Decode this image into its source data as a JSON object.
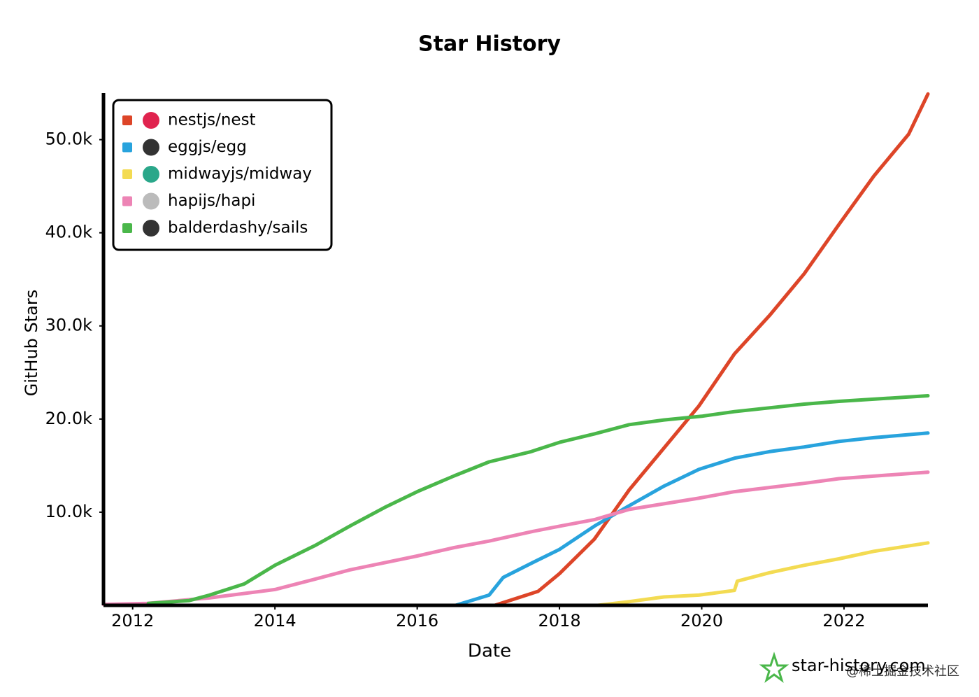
{
  "chart_data": {
    "type": "line",
    "title": "Star History",
    "x_label": "Date",
    "y_label": "GitHub Stars",
    "xlim": [
      2011.59,
      2023.18
    ],
    "xticks": [
      2012,
      2014,
      2016,
      2018,
      2020,
      2022
    ],
    "ylim": [
      0,
      55000
    ],
    "yticks": [
      {
        "value": 10000,
        "label": "10.0k"
      },
      {
        "value": 20000,
        "label": "20.0k"
      },
      {
        "value": 30000,
        "label": "30.0k"
      },
      {
        "value": 40000,
        "label": "40.0k"
      },
      {
        "value": 50000,
        "label": "50.0k"
      }
    ],
    "legend": "upper left",
    "grid": false,
    "series": [
      {
        "name": "nestjs/nest",
        "color": "#dd4528",
        "x": [
          2017.09,
          2017.7,
          2018.0,
          2018.49,
          2018.98,
          2019.47,
          2019.96,
          2020.46,
          2020.95,
          2021.44,
          2021.93,
          2022.42,
          2022.91,
          2023.18
        ],
        "values": [
          0,
          1500,
          3400,
          7100,
          12400,
          16900,
          21400,
          27000,
          31100,
          35600,
          40900,
          46100,
          50600,
          54900
        ]
      },
      {
        "name": "eggjs/egg",
        "color": "#28a3dd",
        "x": [
          2016.54,
          2017.01,
          2017.21,
          2017.6,
          2018.0,
          2018.49,
          2018.98,
          2019.47,
          2019.96,
          2020.46,
          2020.95,
          2021.44,
          2021.93,
          2022.42,
          2023.18
        ],
        "values": [
          0,
          1100,
          3000,
          4500,
          6000,
          8500,
          10700,
          12800,
          14600,
          15800,
          16500,
          17000,
          17600,
          18000,
          18500
        ]
      },
      {
        "name": "midwayjs/midway",
        "color": "#f3db52",
        "x": [
          2018.54,
          2018.98,
          2019.47,
          2019.96,
          2020.46,
          2020.5,
          2020.95,
          2021.44,
          2021.93,
          2022.42,
          2023.18
        ],
        "values": [
          0,
          400,
          900,
          1100,
          1600,
          2600,
          3500,
          4300,
          5000,
          5800,
          6700
        ]
      },
      {
        "name": "hapijs/hapi",
        "color": "#ed84b5",
        "x": [
          2011.59,
          2012.2,
          2013.08,
          2014,
          2014.56,
          2015.05,
          2016,
          2016.52,
          2017.01,
          2017.6,
          2018,
          2018.49,
          2018.98,
          2019.96,
          2020.46,
          2021.44,
          2021.93,
          2023.18
        ],
        "values": [
          100,
          200,
          800,
          1700,
          2800,
          3800,
          5300,
          6200,
          6900,
          7900,
          8500,
          9200,
          10300,
          11500,
          12200,
          13100,
          13600,
          14300
        ]
      },
      {
        "name": "balderdashy/sails",
        "color": "#4ab74a",
        "x": [
          2012.22,
          2012.79,
          2013.08,
          2013.57,
          2014,
          2014.56,
          2015.05,
          2015.54,
          2016,
          2016.52,
          2017.01,
          2017.6,
          2018,
          2018.49,
          2018.98,
          2019.47,
          2020,
          2020.46,
          2020.95,
          2021.44,
          2021.93,
          2023.18
        ],
        "values": [
          200,
          500,
          1100,
          2300,
          4300,
          6400,
          8500,
          10500,
          12200,
          13900,
          15400,
          16500,
          17500,
          18400,
          19400,
          19900,
          20300,
          20800,
          21200,
          21600,
          21900,
          22500
        ]
      }
    ],
    "watermark": "star-history.com",
    "credit": "@稀土掘金技术社区"
  }
}
